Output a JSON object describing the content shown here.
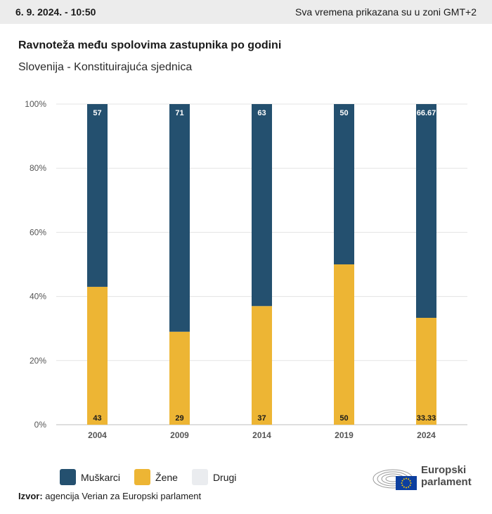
{
  "header": {
    "date": "6. 9. 2024. - 10:50",
    "timezone_note": "Sva vremena prikazana su u zoni GMT+2"
  },
  "chart_data": {
    "type": "bar",
    "stacked": true,
    "title": "Ravnoteža među spolovima zastupnika po godini",
    "subtitle": "Slovenija - Konstituirajuća sjednica",
    "categories": [
      "2004",
      "2009",
      "2014",
      "2019",
      "2024"
    ],
    "series": [
      {
        "name": "Muškarci",
        "values": [
          57,
          71,
          63,
          50,
          66.67
        ],
        "color": "#24506f"
      },
      {
        "name": "Žene",
        "values": [
          43,
          29,
          37,
          50,
          33.33
        ],
        "color": "#edb534"
      },
      {
        "name": "Drugi",
        "values": [
          0,
          0,
          0,
          0,
          0
        ],
        "color": "#eaecef"
      }
    ],
    "data_labels": {
      "Muškarci": [
        "57",
        "71",
        "63",
        "50",
        "66.67"
      ],
      "Žene": [
        "43",
        "29",
        "37",
        "50",
        "33.33"
      ]
    },
    "y_ticks": [
      "0%",
      "20%",
      "40%",
      "60%",
      "80%",
      "100%"
    ],
    "ylim": [
      0,
      100
    ],
    "grid": true,
    "legend_position": "bottom-left"
  },
  "legend": {
    "items": [
      {
        "label": "Muškarci",
        "color": "#24506f"
      },
      {
        "label": "Žene",
        "color": "#edb534"
      },
      {
        "label": "Drugi",
        "color": "#eaecef"
      }
    ]
  },
  "footer": {
    "source_label": "Izvor:",
    "source_text": "agencija Verian za Europski parlament"
  },
  "logo": {
    "line1": "Europski",
    "line2": "parlament"
  }
}
